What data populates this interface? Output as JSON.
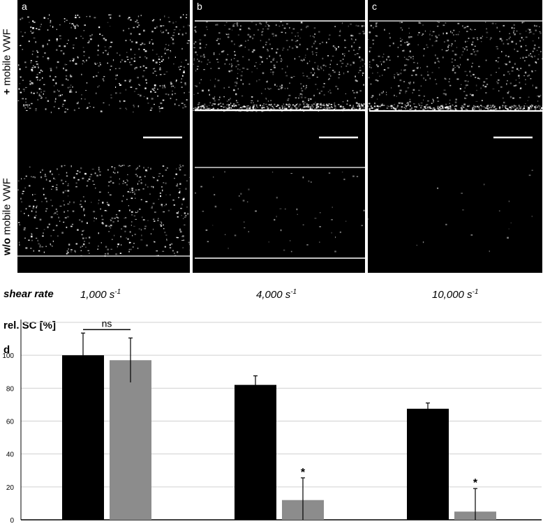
{
  "figure": {
    "panels": [
      {
        "letter": "a"
      },
      {
        "letter": "b"
      },
      {
        "letter": "c"
      }
    ],
    "row_labels": {
      "top": {
        "prefix": "+",
        "rest": " mobile VWF"
      },
      "bottom": {
        "prefix": "w/o",
        "rest": " mobile VWF"
      }
    },
    "shear_title": "shear rate",
    "shear_rates": [
      {
        "value": "1,000 s",
        "exp": "-1"
      },
      {
        "value": "4,000 s",
        "exp": "-1"
      },
      {
        "value": "10,000 s",
        "exp": "-1"
      }
    ],
    "colors": {
      "with_mobile": "#000000",
      "without_mobile": "#8c8c8c"
    }
  },
  "chart_data": {
    "type": "bar",
    "panel_letter": "d",
    "ylabel": "rel. SC [%]",
    "ylim": [
      0,
      120
    ],
    "yticks": [
      0,
      20,
      40,
      60,
      80,
      100
    ],
    "grid": true,
    "categories": [
      "1,000 s-1",
      "4,000 s-1",
      "10,000 s-1"
    ],
    "series": [
      {
        "values": [
          100,
          82,
          67.5
        ],
        "errors": [
          13.5,
          5.5,
          3.5
        ],
        "color": "#000000"
      },
      {
        "values": [
          97,
          12,
          5
        ],
        "errors": [
          13.5,
          13.5,
          14
        ],
        "color": "#8c8c8c"
      }
    ],
    "annotations": [
      {
        "text": "ns",
        "category_index": 0
      },
      {
        "text": "*",
        "category_index": 1,
        "series_index": 1
      },
      {
        "text": "*",
        "category_index": 2,
        "series_index": 1
      }
    ]
  }
}
